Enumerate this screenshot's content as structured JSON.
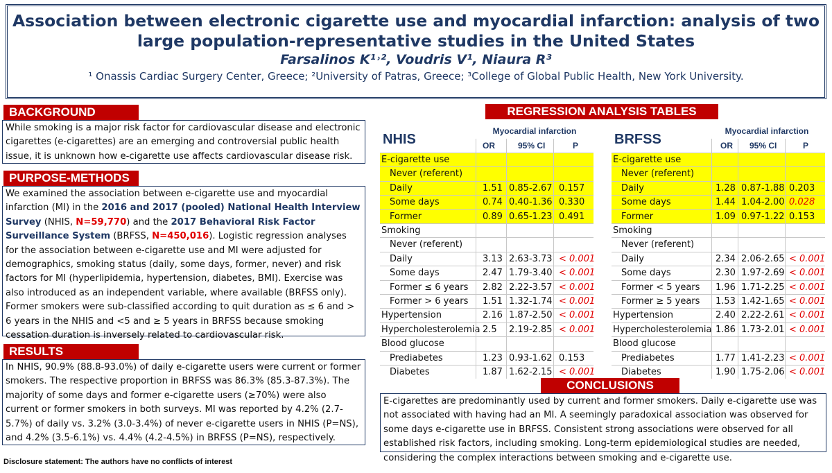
{
  "header": {
    "title_line1": "Association between electronic cigarette use and myocardial infarction: analysis of two",
    "title_line2": "large population-representative studies in the United States",
    "authors": "Farsalinos K¹˒², Voudris V¹, Niaura R³",
    "affiliations": "¹ Onassis Cardiac Surgery Center, Greece; ²University of Patras, Greece; ³College of Global Public Health, New York University."
  },
  "background": {
    "heading": "BACKGROUND",
    "text": "While smoking is a major risk factor for cardiovascular disease and electronic cigarettes (e-cigarettes) are an emerging and controversial public health issue, it is unknown how e-cigarette use affects cardiovascular disease risk."
  },
  "purpose": {
    "heading": "PURPOSE-METHODS",
    "t1": "We examined the association between e-cigarette use and myocardial infarction (MI) in the ",
    "b1": "2016 and 2017 (pooled) National Health Interview Survey",
    "t2": " (NHIS, ",
    "r1": "N=59,770",
    "t3": ") and the ",
    "b2": "2017 Behavioral Risk Factor Surveillance System",
    "t4": " (BRFSS, ",
    "r2": "N=450,016",
    "t5": "). Logistic regression analyses for the association between e-cigarette use and MI were adjusted for demographics, smoking status (daily, some days, former, never) and risk factors for MI (hyperlipidemia, hypertension, diabetes, BMI). Exercise was also introduced as an independent variable, where available (BRFSS only). Former smokers were sub-classified according to quit duration as ≤ 6 and > 6 years in the NHIS and <5 and ≥ 5 years in BRFSS because smoking cessation duration is inversely related to cardiovascular risk."
  },
  "results": {
    "heading": "RESULTS",
    "text": "In NHIS, 90.9% (88.8-93.0%) of daily e-cigarette users were current or former smokers. The respective proportion in BRFSS was 86.3% (85.3-87.3%). The majority of some days and former e-cigarette users (≥70%) were also current or former smokers in both surveys. MI was reported by 4.2% (2.7-5.7%) of daily vs. 3.2% (3.0-3.4%) of never e-cigarette users in NHIS (P=NS), and 4.2% (3.5-6.1%) vs. 4.4% (4.2-4.5%) in BRFSS (P=NS), respectively."
  },
  "disclosure": "Disclosure statement: The authors have no conflicts of interest",
  "regression": {
    "heading": "REGRESSION ANALYSIS TABLES",
    "group_header": "Myocardial infarction",
    "col_or": "OR",
    "col_ci": "95% CI",
    "col_p": "P"
  },
  "nhis_table": {
    "name": "NHIS",
    "rows": [
      {
        "label": "E-cigarette use",
        "indent": false,
        "hl": true,
        "or": "",
        "ci": "",
        "p": "",
        "red": false
      },
      {
        "label": "Never (referent)",
        "indent": true,
        "hl": true,
        "or": "",
        "ci": "",
        "p": "",
        "red": false
      },
      {
        "label": "Daily",
        "indent": true,
        "hl": true,
        "or": "1.51",
        "ci": "0.85-2.67",
        "p": "0.157",
        "red": false
      },
      {
        "label": "Some days",
        "indent": true,
        "hl": true,
        "or": "0.74",
        "ci": "0.40-1.36",
        "p": "0.330",
        "red": false
      },
      {
        "label": "Former",
        "indent": true,
        "hl": true,
        "or": "0.89",
        "ci": "0.65-1.23",
        "p": "0.491",
        "red": false
      },
      {
        "label": "Smoking",
        "indent": false,
        "hl": false,
        "or": "",
        "ci": "",
        "p": "",
        "red": false
      },
      {
        "label": "Never (referent)",
        "indent": true,
        "hl": false,
        "or": "",
        "ci": "",
        "p": "",
        "red": false
      },
      {
        "label": "Daily",
        "indent": true,
        "hl": false,
        "or": "3.13",
        "ci": "2.63-3.73",
        "p": "< 0.001",
        "red": true
      },
      {
        "label": "Some days",
        "indent": true,
        "hl": false,
        "or": "2.47",
        "ci": "1.79-3.40",
        "p": "< 0.001",
        "red": true
      },
      {
        "label": "Former ≤ 6 years",
        "indent": true,
        "hl": false,
        "or": "2.82",
        "ci": "2.22-3.57",
        "p": "< 0.001",
        "red": true
      },
      {
        "label": "Former > 6 years",
        "indent": true,
        "hl": false,
        "or": "1.51",
        "ci": "1.32-1.74",
        "p": "< 0.001",
        "red": true
      },
      {
        "label": "Hypertension",
        "indent": false,
        "hl": false,
        "or": "2.16",
        "ci": "1.87-2.50",
        "p": "< 0.001",
        "red": true
      },
      {
        "label": "Hypercholesterolemia",
        "indent": false,
        "hl": false,
        "or": "2.5",
        "ci": "2.19-2.85",
        "p": "< 0.001",
        "red": true
      },
      {
        "label": "Blood glucose",
        "indent": false,
        "hl": false,
        "or": "",
        "ci": "",
        "p": "",
        "red": false
      },
      {
        "label": "Prediabetes",
        "indent": true,
        "hl": false,
        "or": "1.23",
        "ci": "0.93-1.62",
        "p": "0.153",
        "red": false
      },
      {
        "label": "Diabetes",
        "indent": true,
        "hl": false,
        "or": "1.87",
        "ci": "1.62-2.15",
        "p": "< 0.001",
        "red": true
      }
    ]
  },
  "brfss_table": {
    "name": "BRFSS",
    "rows": [
      {
        "label": "E-cigarette use",
        "indent": false,
        "hl": true,
        "or": "",
        "ci": "",
        "p": "",
        "red": false
      },
      {
        "label": "Never (referent)",
        "indent": true,
        "hl": true,
        "or": "",
        "ci": "",
        "p": "",
        "red": false
      },
      {
        "label": "Daily",
        "indent": true,
        "hl": true,
        "or": "1.28",
        "ci": "0.87-1.88",
        "p": "0.203",
        "red": false
      },
      {
        "label": "Some days",
        "indent": true,
        "hl": true,
        "or": "1.44",
        "ci": "1.04-2.00",
        "p": "0.028",
        "red": true
      },
      {
        "label": "Former",
        "indent": true,
        "hl": true,
        "or": "1.09",
        "ci": "0.97-1.22",
        "p": "0.153",
        "red": false
      },
      {
        "label": "Smoking",
        "indent": false,
        "hl": false,
        "or": "",
        "ci": "",
        "p": "",
        "red": false
      },
      {
        "label": "Never (referent)",
        "indent": true,
        "hl": false,
        "or": "",
        "ci": "",
        "p": "",
        "red": false
      },
      {
        "label": "Daily",
        "indent": true,
        "hl": false,
        "or": "2.34",
        "ci": "2.06-2.65",
        "p": "< 0.001",
        "red": true
      },
      {
        "label": "Some days",
        "indent": true,
        "hl": false,
        "or": "2.30",
        "ci": "1.97-2.69",
        "p": "< 0.001",
        "red": true
      },
      {
        "label": "Former < 5 years",
        "indent": true,
        "hl": false,
        "or": "1.96",
        "ci": "1.71-2.25",
        "p": "< 0.001",
        "red": true
      },
      {
        "label": "Former ≥ 5 years",
        "indent": true,
        "hl": false,
        "or": "1.53",
        "ci": "1.42-1.65",
        "p": "< 0.001",
        "red": true
      },
      {
        "label": "Hypertension",
        "indent": false,
        "hl": false,
        "or": "2.40",
        "ci": "2.22-2.61",
        "p": "< 0.001",
        "red": true
      },
      {
        "label": "Hypercholesterolemia",
        "indent": false,
        "hl": false,
        "or": "1.86",
        "ci": "1.73-2.01",
        "p": "< 0.001",
        "red": true
      },
      {
        "label": "Blood glucose",
        "indent": false,
        "hl": false,
        "or": "",
        "ci": "",
        "p": "",
        "red": false
      },
      {
        "label": "Prediabetes",
        "indent": true,
        "hl": false,
        "or": "1.77",
        "ci": "1.41-2.23",
        "p": "< 0.001",
        "red": true
      },
      {
        "label": "Diabetes",
        "indent": true,
        "hl": false,
        "or": "1.90",
        "ci": "1.75-2.06",
        "p": "< 0.001",
        "red": true
      }
    ]
  },
  "conclusions": {
    "heading": "CONCLUSIONS",
    "text": "E-cigarettes are predominantly used by current and former smokers. Daily e-cigarette use was not associated with having had an MI. A seemingly paradoxical association was observed for some days e-cigarette use in BRFSS. Consistent strong associations were observed for all established risk factors, including smoking. Long-term epidemiological studies are needed, considering the complex interactions between smoking and e-cigarette use."
  },
  "colors": {
    "accent_red": "#c00000",
    "navy": "#1f3864",
    "highlight": "#ffff00"
  }
}
